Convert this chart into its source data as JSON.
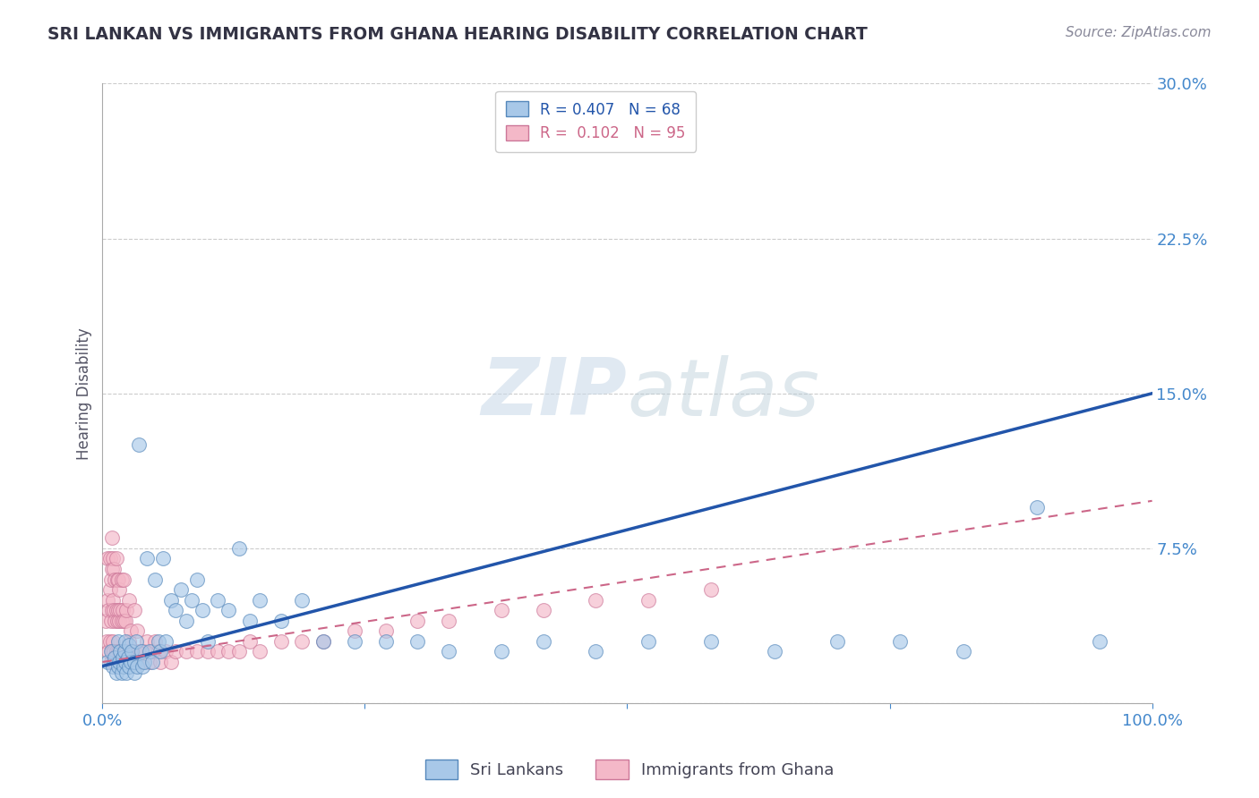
{
  "title": "SRI LANKAN VS IMMIGRANTS FROM GHANA HEARING DISABILITY CORRELATION CHART",
  "source": "Source: ZipAtlas.com",
  "ylabel": "Hearing Disability",
  "xlim": [
    0.0,
    1.0
  ],
  "ylim": [
    0.0,
    0.3
  ],
  "yticks": [
    0.0,
    0.075,
    0.15,
    0.225,
    0.3
  ],
  "xticks": [
    0.0,
    0.25,
    0.5,
    0.75,
    1.0
  ],
  "blue_R": 0.407,
  "blue_N": 68,
  "pink_R": 0.102,
  "pink_N": 95,
  "blue_color": "#a8c8e8",
  "pink_color": "#f4b8c8",
  "blue_edge_color": "#5588bb",
  "pink_edge_color": "#cc7799",
  "blue_line_color": "#2255aa",
  "pink_line_color": "#cc6688",
  "title_color": "#333344",
  "axis_tick_color": "#4488cc",
  "grid_color": "#cccccc",
  "watermark_color": "#d5e5f0",
  "legend_blue_label": "Sri Lankans",
  "legend_pink_label": "Immigrants from Ghana",
  "blue_line_x0": 0.0,
  "blue_line_y0": 0.018,
  "blue_line_x1": 1.0,
  "blue_line_y1": 0.15,
  "pink_line_x0": 0.0,
  "pink_line_y0": 0.02,
  "pink_line_x1": 1.0,
  "pink_line_y1": 0.098,
  "blue_scatter_x": [
    0.005,
    0.008,
    0.01,
    0.012,
    0.013,
    0.015,
    0.015,
    0.016,
    0.017,
    0.018,
    0.019,
    0.02,
    0.021,
    0.022,
    0.022,
    0.023,
    0.024,
    0.025,
    0.025,
    0.027,
    0.028,
    0.03,
    0.03,
    0.032,
    0.033,
    0.035,
    0.037,
    0.038,
    0.04,
    0.042,
    0.045,
    0.047,
    0.05,
    0.053,
    0.055,
    0.058,
    0.06,
    0.065,
    0.07,
    0.075,
    0.08,
    0.085,
    0.09,
    0.095,
    0.1,
    0.11,
    0.12,
    0.13,
    0.14,
    0.15,
    0.17,
    0.19,
    0.21,
    0.24,
    0.27,
    0.3,
    0.33,
    0.38,
    0.42,
    0.47,
    0.52,
    0.58,
    0.64,
    0.7,
    0.76,
    0.82,
    0.89,
    0.95
  ],
  "blue_scatter_y": [
    0.02,
    0.025,
    0.018,
    0.022,
    0.015,
    0.03,
    0.018,
    0.02,
    0.025,
    0.015,
    0.022,
    0.018,
    0.025,
    0.02,
    0.03,
    0.015,
    0.022,
    0.028,
    0.018,
    0.02,
    0.025,
    0.015,
    0.02,
    0.03,
    0.018,
    0.125,
    0.025,
    0.018,
    0.02,
    0.07,
    0.025,
    0.02,
    0.06,
    0.03,
    0.025,
    0.07,
    0.03,
    0.05,
    0.045,
    0.055,
    0.04,
    0.05,
    0.06,
    0.045,
    0.03,
    0.05,
    0.045,
    0.075,
    0.04,
    0.05,
    0.04,
    0.05,
    0.03,
    0.03,
    0.03,
    0.03,
    0.025,
    0.025,
    0.03,
    0.025,
    0.03,
    0.03,
    0.025,
    0.03,
    0.03,
    0.025,
    0.095,
    0.03
  ],
  "pink_scatter_x": [
    0.003,
    0.004,
    0.005,
    0.005,
    0.006,
    0.006,
    0.007,
    0.007,
    0.007,
    0.008,
    0.008,
    0.008,
    0.009,
    0.009,
    0.009,
    0.009,
    0.01,
    0.01,
    0.01,
    0.01,
    0.011,
    0.011,
    0.011,
    0.012,
    0.012,
    0.012,
    0.013,
    0.013,
    0.013,
    0.014,
    0.014,
    0.014,
    0.015,
    0.015,
    0.015,
    0.016,
    0.016,
    0.016,
    0.017,
    0.017,
    0.018,
    0.018,
    0.018,
    0.019,
    0.019,
    0.02,
    0.02,
    0.02,
    0.021,
    0.022,
    0.022,
    0.023,
    0.023,
    0.024,
    0.025,
    0.025,
    0.026,
    0.027,
    0.028,
    0.03,
    0.03,
    0.032,
    0.033,
    0.035,
    0.037,
    0.04,
    0.042,
    0.045,
    0.047,
    0.05,
    0.053,
    0.055,
    0.06,
    0.065,
    0.07,
    0.08,
    0.09,
    0.1,
    0.11,
    0.12,
    0.13,
    0.14,
    0.15,
    0.17,
    0.19,
    0.21,
    0.24,
    0.27,
    0.3,
    0.33,
    0.38,
    0.42,
    0.47,
    0.52,
    0.58
  ],
  "pink_scatter_y": [
    0.04,
    0.03,
    0.05,
    0.07,
    0.025,
    0.045,
    0.03,
    0.055,
    0.07,
    0.02,
    0.04,
    0.06,
    0.025,
    0.045,
    0.065,
    0.08,
    0.03,
    0.05,
    0.02,
    0.07,
    0.025,
    0.045,
    0.065,
    0.02,
    0.04,
    0.06,
    0.025,
    0.045,
    0.07,
    0.02,
    0.04,
    0.06,
    0.025,
    0.045,
    0.06,
    0.02,
    0.04,
    0.055,
    0.025,
    0.045,
    0.02,
    0.04,
    0.06,
    0.025,
    0.045,
    0.02,
    0.04,
    0.06,
    0.025,
    0.02,
    0.04,
    0.025,
    0.045,
    0.02,
    0.03,
    0.05,
    0.025,
    0.035,
    0.02,
    0.025,
    0.045,
    0.02,
    0.035,
    0.025,
    0.02,
    0.025,
    0.03,
    0.02,
    0.025,
    0.03,
    0.025,
    0.02,
    0.025,
    0.02,
    0.025,
    0.025,
    0.025,
    0.025,
    0.025,
    0.025,
    0.025,
    0.03,
    0.025,
    0.03,
    0.03,
    0.03,
    0.035,
    0.035,
    0.04,
    0.04,
    0.045,
    0.045,
    0.05,
    0.05,
    0.055
  ]
}
